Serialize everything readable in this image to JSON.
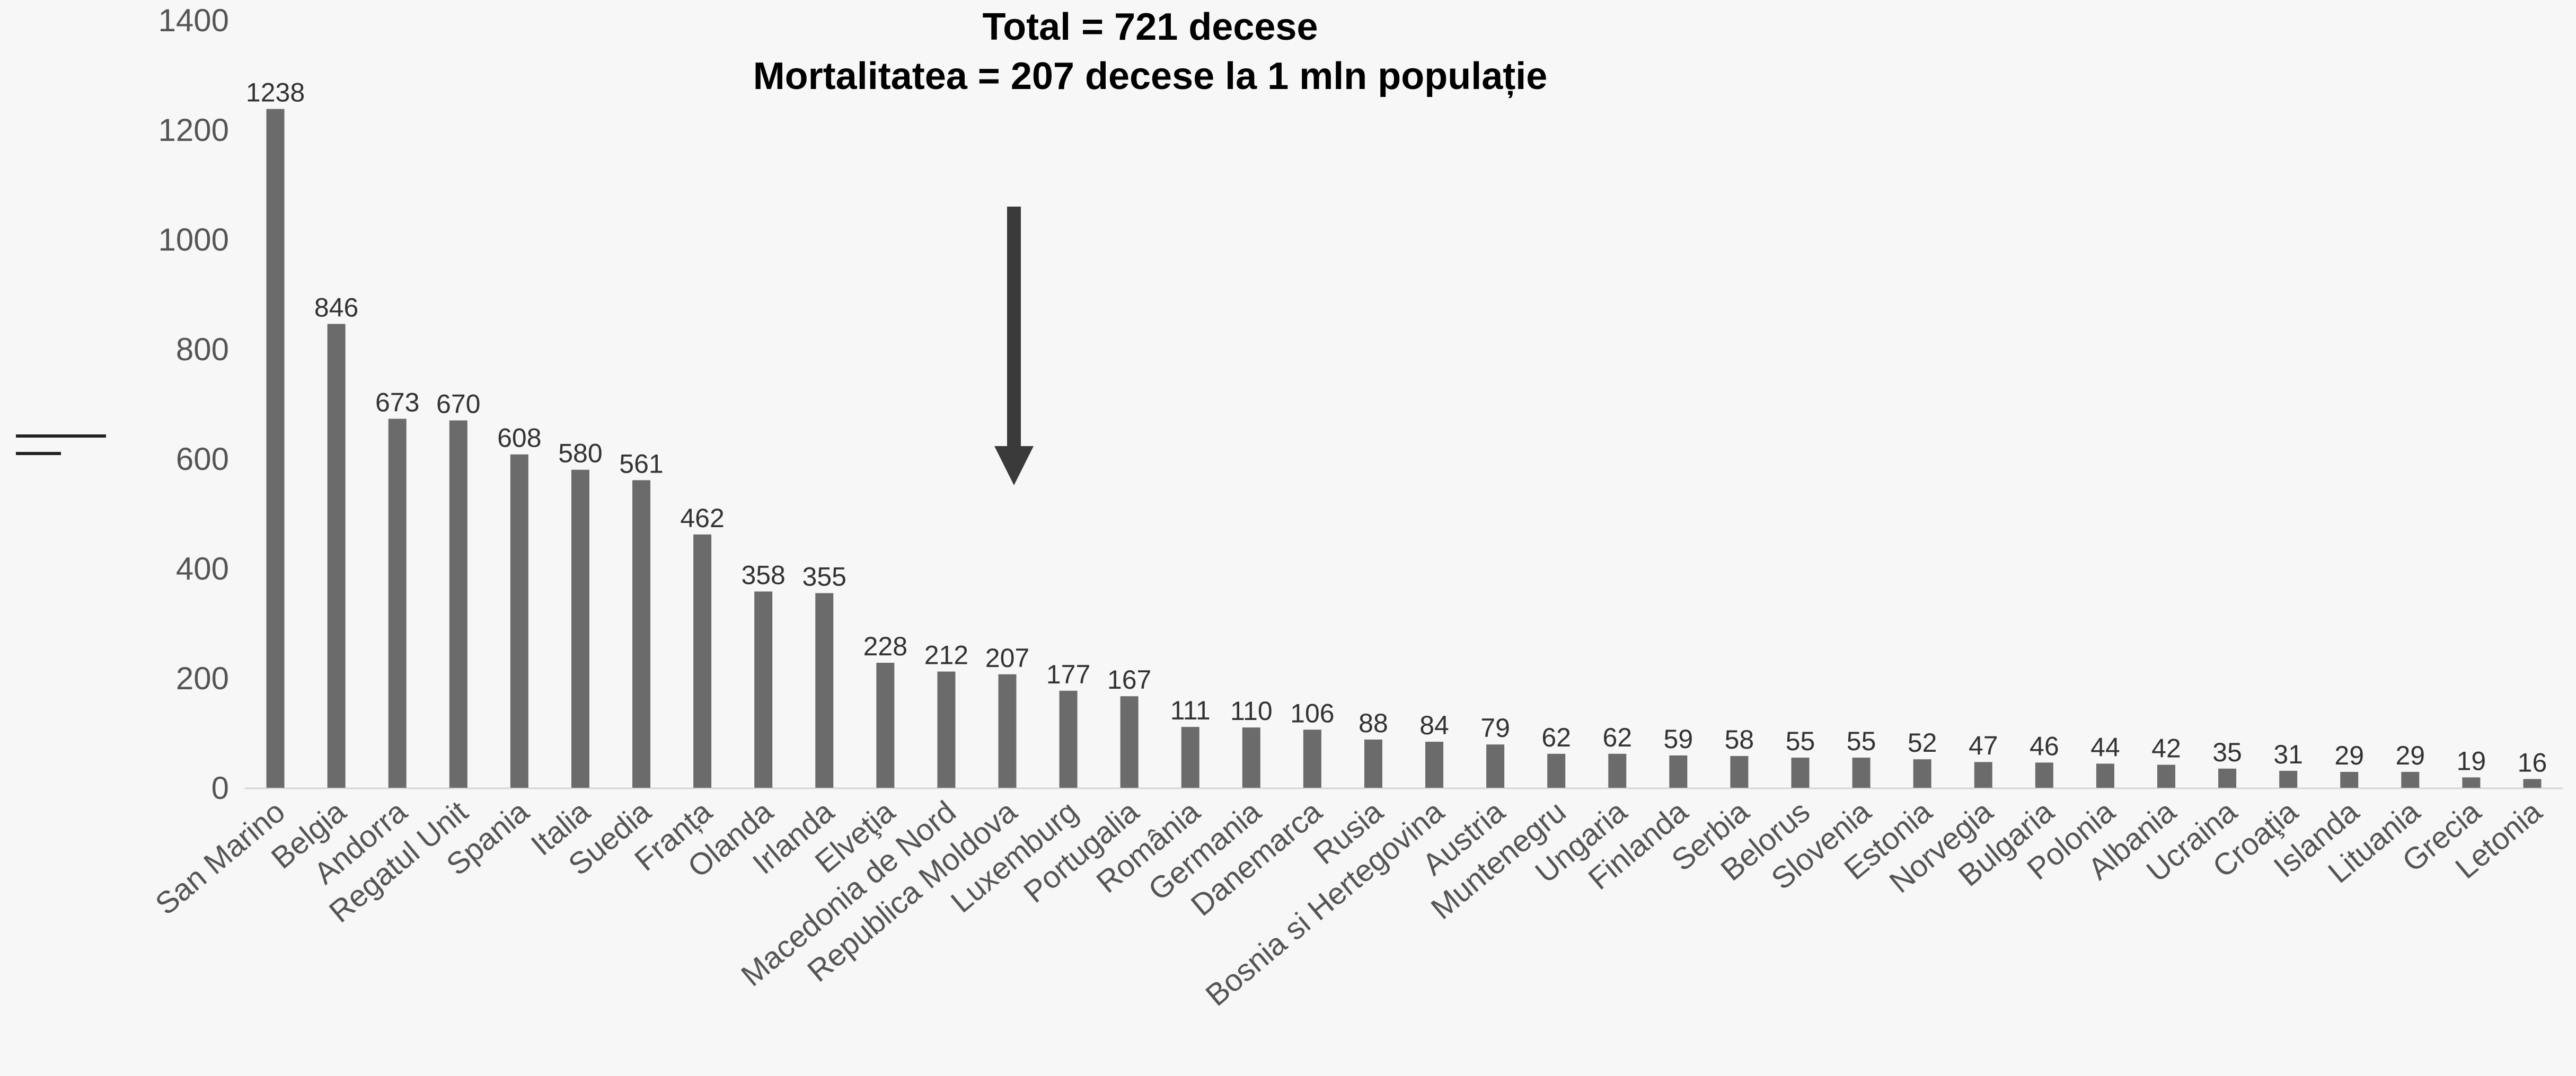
{
  "chart_data": {
    "type": "bar",
    "title_lines": [
      "Total = 721 decese",
      "Mortalitatea = 207 decese la 1 mln populație"
    ],
    "xlabel": "",
    "ylabel": "",
    "ylim": [
      0,
      1400
    ],
    "yticks": [
      0,
      200,
      400,
      600,
      800,
      1000,
      1200,
      1400
    ],
    "grid": false,
    "legend": "none",
    "highlighted_category": "Republica Moldova",
    "categories": [
      "San Marino",
      "Belgia",
      "Andorra",
      "Regatul Unit",
      "Spania",
      "Italia",
      "Suedia",
      "Franța",
      "Olanda",
      "Irlanda",
      "Elveţia",
      "Macedonia de Nord",
      "Republica Moldova",
      "Luxemburg",
      "Portugalia",
      "România",
      "Germania",
      "Danemarca",
      "Rusia",
      "Bosnia si Hertegovina",
      "Austria",
      "Muntenegru",
      "Ungaria",
      "Finlanda",
      "Serbia",
      "Belorus",
      "Slovenia",
      "Estonia",
      "Norvegia",
      "Bulgaria",
      "Polonia",
      "Albania",
      "Ucraina",
      "Croaţia",
      "Islanda",
      "Lituania",
      "Grecia",
      "Letonia"
    ],
    "values": [
      1238,
      846,
      673,
      670,
      608,
      580,
      561,
      462,
      358,
      355,
      228,
      212,
      207,
      177,
      167,
      111,
      110,
      106,
      88,
      84,
      79,
      62,
      62,
      59,
      58,
      55,
      55,
      52,
      47,
      46,
      44,
      42,
      35,
      31,
      29,
      29,
      19,
      16
    ],
    "colors": {
      "bar": "#6b6b6b",
      "arrow": "#3a3a3a",
      "axis": "#d6d6d6",
      "background": "#f7f7f7"
    }
  }
}
